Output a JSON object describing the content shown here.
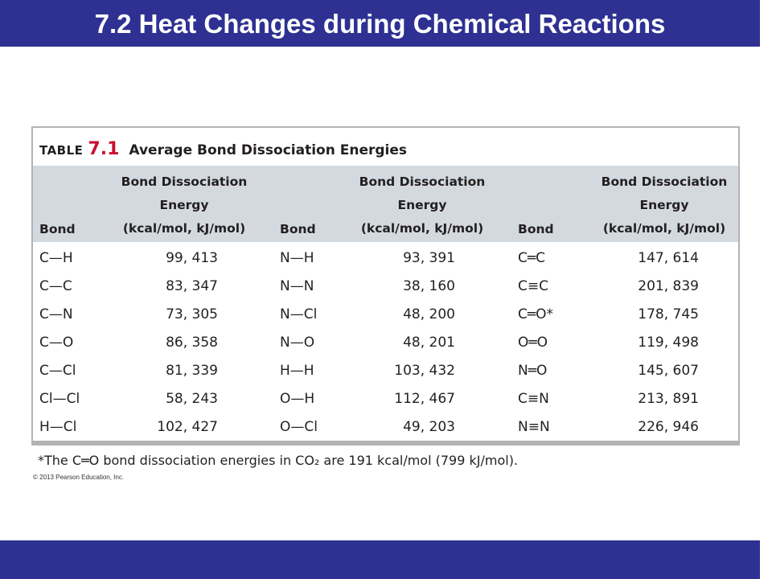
{
  "title": "7.2 Heat Changes during Chemical Reactions",
  "table": {
    "label": "TABLE",
    "number": "7.1",
    "name": "Average Bond Dissociation Energies",
    "bond_header": "Bond",
    "energy_header": [
      "Bond Dissociation",
      "Energy",
      "(kcal/mol, kJ/mol)"
    ],
    "columns": [
      {
        "rows": [
          {
            "bond": "C—H",
            "energy": "99, 413"
          },
          {
            "bond": "C—C",
            "energy": "83, 347"
          },
          {
            "bond": "C—N",
            "energy": "73, 305"
          },
          {
            "bond": "C—O",
            "energy": "86, 358"
          },
          {
            "bond": "C—Cl",
            "energy": "81, 339"
          },
          {
            "bond": "Cl—Cl",
            "energy": "58, 243"
          },
          {
            "bond": "H—Cl",
            "energy": "102, 427"
          }
        ]
      },
      {
        "rows": [
          {
            "bond": "N—H",
            "energy": "93, 391"
          },
          {
            "bond": "N—N",
            "energy": "38, 160"
          },
          {
            "bond": "N—Cl",
            "energy": "48, 200"
          },
          {
            "bond": "N—O",
            "energy": "48, 201"
          },
          {
            "bond": "H—H",
            "energy": "103, 432"
          },
          {
            "bond": "O—H",
            "energy": "112, 467"
          },
          {
            "bond": "O—Cl",
            "energy": "49, 203"
          }
        ]
      },
      {
        "rows": [
          {
            "bond": "C═C",
            "energy": "147, 614"
          },
          {
            "bond": "C≡C",
            "energy": "201, 839"
          },
          {
            "bond": "C═O*",
            "energy": "178, 745"
          },
          {
            "bond": "O═O",
            "energy": "119, 498"
          },
          {
            "bond": "N═O",
            "energy": "145, 607"
          },
          {
            "bond": "C≡N",
            "energy": "213, 891"
          },
          {
            "bond": "N≡N",
            "energy": "226, 946"
          }
        ]
      }
    ],
    "footnote": "*The C═O bond dissociation energies in CO₂ are 191 kcal/mol (799 kJ/mol).",
    "copyright": "© 2013 Pearson Education, Inc."
  },
  "colors": {
    "banner": "#2e3192",
    "header_band": "#d4d9e0",
    "accent": "#c8102e"
  }
}
